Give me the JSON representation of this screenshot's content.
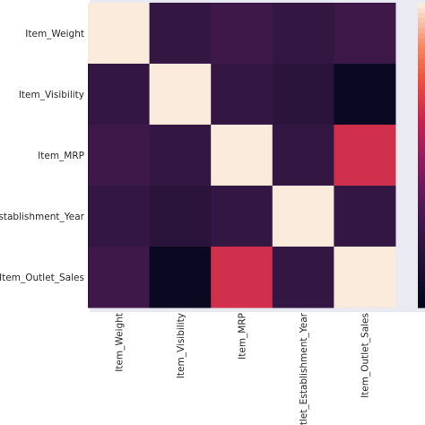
{
  "chart_data": {
    "type": "heatmap",
    "title": "",
    "xlabel": "",
    "ylabel": "",
    "row_labels": [
      "Item_Weight",
      "Item_Visibility",
      "Item_MRP",
      "Outlet_Establishment_Year",
      "Item_Outlet_Sales"
    ],
    "col_labels": [
      "Item_Weight",
      "Item_Visibility",
      "Item_MRP",
      "Outlet_Establishment_Year",
      "Item_Outlet_Sales"
    ],
    "values": [
      [
        1.0,
        0.0,
        0.05,
        0.0,
        0.05
      ],
      [
        0.0,
        1.0,
        0.0,
        -0.05,
        -0.25
      ],
      [
        0.05,
        0.0,
        1.0,
        0.0,
        0.55
      ],
      [
        0.0,
        -0.05,
        0.0,
        1.0,
        0.0
      ],
      [
        0.05,
        -0.25,
        0.55,
        0.0,
        1.0
      ]
    ],
    "vmin": -0.3,
    "vmax": 1.0,
    "colormap": "rocket",
    "colorbar": true,
    "grid": false,
    "plot_background": "#eaeaf2"
  }
}
